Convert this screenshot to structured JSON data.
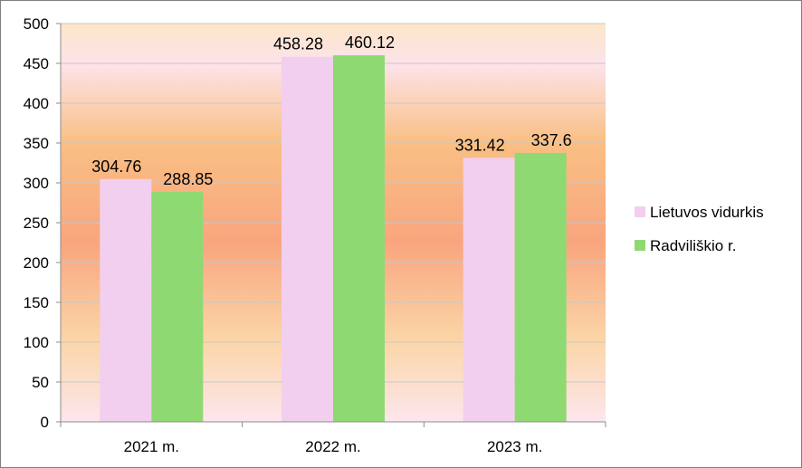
{
  "chart_data": {
    "type": "bar",
    "title": "",
    "xlabel": "",
    "ylabel": "",
    "categories": [
      "2021 m.",
      "2022 m.",
      "2023 m."
    ],
    "series": [
      {
        "name": "Lietuvos vidurkis",
        "values": [
          304.76,
          458.28,
          331.42
        ],
        "value_labels": [
          "304.76",
          "458.28",
          "331.42"
        ],
        "color": "#f2cfee"
      },
      {
        "name": "Radviliškio r.",
        "values": [
          288.85,
          460.12,
          337.6
        ],
        "value_labels": [
          "288.85",
          "460.12",
          "337.6"
        ],
        "color": "#8fd973"
      }
    ],
    "ylim": [
      0,
      500
    ],
    "yticks": [
      0,
      50,
      100,
      150,
      200,
      250,
      300,
      350,
      400,
      450,
      500
    ],
    "grid": true,
    "legend": "right",
    "plot_background": "orange-pink gradient"
  }
}
